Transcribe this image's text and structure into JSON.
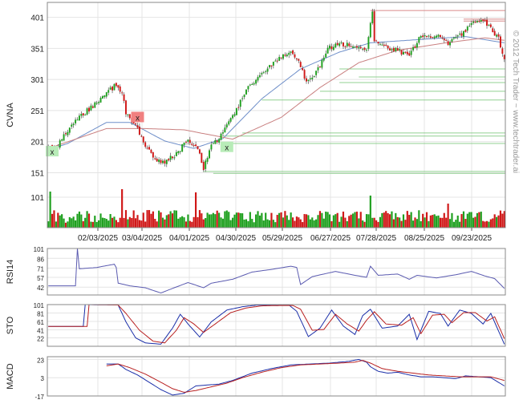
{
  "chart_data": [
    {
      "type": "candlestick",
      "panel": "price",
      "ylabel": "CVNA",
      "yticks": [
        151,
        201,
        251,
        301,
        351,
        401
      ],
      "volume_tick": 101,
      "ylim": [
        140,
        425
      ],
      "xticks": [
        "02/03/2025",
        "03/04/2025",
        "04/01/2025",
        "04/30/2025",
        "05/29/2025",
        "06/27/2025",
        "07/28/2025",
        "08/25/2025",
        "09/23/2025"
      ],
      "close_anchors": [
        [
          0,
          190
        ],
        [
          5,
          195
        ],
        [
          12,
          228
        ],
        [
          24,
          262
        ],
        [
          34,
          290
        ],
        [
          38,
          282
        ],
        [
          40,
          245
        ],
        [
          44,
          232
        ],
        [
          48,
          208
        ],
        [
          52,
          185
        ],
        [
          56,
          172
        ],
        [
          60,
          168
        ],
        [
          66,
          182
        ],
        [
          72,
          205
        ],
        [
          77,
          190
        ],
        [
          80,
          158
        ],
        [
          84,
          195
        ],
        [
          88,
          205
        ],
        [
          95,
          240
        ],
        [
          102,
          285
        ],
        [
          108,
          303
        ],
        [
          114,
          322
        ],
        [
          120,
          338
        ],
        [
          125,
          342
        ],
        [
          128,
          335
        ],
        [
          133,
          298
        ],
        [
          138,
          312
        ],
        [
          144,
          350
        ],
        [
          150,
          360
        ],
        [
          158,
          352
        ],
        [
          164,
          348
        ],
        [
          167,
          410
        ],
        [
          168,
          362
        ],
        [
          174,
          352
        ],
        [
          180,
          348
        ],
        [
          186,
          338
        ],
        [
          192,
          372
        ],
        [
          200,
          372
        ],
        [
          206,
          358
        ],
        [
          212,
          372
        ],
        [
          218,
          390
        ],
        [
          224,
          395
        ],
        [
          228,
          382
        ],
        [
          232,
          368
        ],
        [
          235,
          332
        ]
      ],
      "ma_fast_anchors": [
        [
          0,
          188
        ],
        [
          10,
          198
        ],
        [
          30,
          232
        ],
        [
          42,
          232
        ],
        [
          60,
          202
        ],
        [
          75,
          190
        ],
        [
          90,
          206
        ],
        [
          110,
          270
        ],
        [
          130,
          318
        ],
        [
          150,
          345
        ],
        [
          166,
          360
        ],
        [
          190,
          365
        ],
        [
          215,
          370
        ],
        [
          235,
          360
        ]
      ],
      "ma_slow_anchors": [
        [
          0,
          190
        ],
        [
          30,
          222
        ],
        [
          50,
          222
        ],
        [
          70,
          220
        ],
        [
          95,
          205
        ],
        [
          120,
          240
        ],
        [
          140,
          288
        ],
        [
          160,
          328
        ],
        [
          180,
          348
        ],
        [
          205,
          360
        ],
        [
          225,
          368
        ],
        [
          235,
          364
        ]
      ],
      "support_lines": [
        {
          "start": 166,
          "level": 412,
          "color": "#d98a8a"
        },
        {
          "start": 214,
          "level": 398,
          "color": "#d98a8a"
        },
        {
          "start": 214,
          "level": 395,
          "color": "#d98a8a"
        },
        {
          "start": 150,
          "level": 318,
          "color": "#90d090"
        },
        {
          "start": 160,
          "level": 305,
          "color": "#90d090"
        },
        {
          "start": 150,
          "level": 296,
          "color": "#90d090"
        },
        {
          "start": 140,
          "level": 282,
          "color": "#90d090"
        },
        {
          "start": 110,
          "level": 268,
          "color": "#90d090"
        },
        {
          "start": 90,
          "level": 210,
          "color": "#90d090"
        },
        {
          "start": 100,
          "level": 215,
          "color": "#90d090"
        },
        {
          "start": 90,
          "level": 198,
          "color": "#90d090"
        },
        {
          "start": 80,
          "level": 153,
          "color": "#90d090"
        },
        {
          "start": 85,
          "level": 150,
          "color": "#90d090"
        }
      ],
      "markers": [
        {
          "bar": 2,
          "level": 185,
          "label": "x",
          "color": "#b8ecb8"
        },
        {
          "bar": 46,
          "level": 240,
          "label": "x",
          "color": "#f08080"
        },
        {
          "bar": 92,
          "level": 192,
          "label": "x",
          "color": "#b8ecb8"
        }
      ],
      "watermark": "© 2012 Tech Trader ~ www.techtrader.ai"
    },
    {
      "type": "line",
      "panel": "rsi",
      "ylabel": "RSI14",
      "yticks": [
        101,
        86,
        71,
        57,
        42
      ],
      "ylim": [
        30,
        101
      ],
      "anchors": [
        [
          0,
          44
        ],
        [
          14,
          44
        ],
        [
          15,
          101
        ],
        [
          16,
          70
        ],
        [
          25,
          72
        ],
        [
          34,
          77
        ],
        [
          35,
          72
        ],
        [
          36,
          48
        ],
        [
          42,
          44
        ],
        [
          50,
          41
        ],
        [
          58,
          33
        ],
        [
          64,
          40
        ],
        [
          72,
          49
        ],
        [
          80,
          41
        ],
        [
          84,
          48
        ],
        [
          95,
          54
        ],
        [
          105,
          65
        ],
        [
          115,
          69
        ],
        [
          125,
          74
        ],
        [
          128,
          72
        ],
        [
          130,
          46
        ],
        [
          136,
          58
        ],
        [
          148,
          66
        ],
        [
          158,
          60
        ],
        [
          164,
          57
        ],
        [
          166,
          74
        ],
        [
          170,
          60
        ],
        [
          180,
          62
        ],
        [
          186,
          54
        ],
        [
          190,
          60
        ],
        [
          200,
          56
        ],
        [
          210,
          61
        ],
        [
          218,
          66
        ],
        [
          225,
          59
        ],
        [
          230,
          55
        ],
        [
          235,
          40
        ]
      ]
    },
    {
      "type": "line",
      "panel": "stochastic",
      "ylabel": "STO",
      "yticks": [
        101,
        81,
        61,
        41,
        22
      ],
      "ylim": [
        2,
        101
      ],
      "k_anchors": [
        [
          0,
          49
        ],
        [
          18,
          49
        ],
        [
          19,
          101
        ],
        [
          36,
          100
        ],
        [
          40,
          60
        ],
        [
          45,
          22
        ],
        [
          50,
          10
        ],
        [
          58,
          7
        ],
        [
          64,
          45
        ],
        [
          68,
          78
        ],
        [
          72,
          55
        ],
        [
          78,
          24
        ],
        [
          84,
          60
        ],
        [
          92,
          88
        ],
        [
          100,
          96
        ],
        [
          108,
          100
        ],
        [
          118,
          99
        ],
        [
          124,
          100
        ],
        [
          128,
          85
        ],
        [
          134,
          25
        ],
        [
          140,
          45
        ],
        [
          146,
          88
        ],
        [
          152,
          50
        ],
        [
          158,
          30
        ],
        [
          162,
          75
        ],
        [
          166,
          90
        ],
        [
          172,
          45
        ],
        [
          180,
          50
        ],
        [
          186,
          78
        ],
        [
          190,
          18
        ],
        [
          196,
          85
        ],
        [
          202,
          80
        ],
        [
          206,
          50
        ],
        [
          212,
          88
        ],
        [
          218,
          80
        ],
        [
          224,
          55
        ],
        [
          228,
          80
        ],
        [
          235,
          7
        ]
      ],
      "d_anchors": [
        [
          0,
          49
        ],
        [
          20,
          49
        ],
        [
          21,
          101
        ],
        [
          36,
          100
        ],
        [
          40,
          80
        ],
        [
          47,
          40
        ],
        [
          54,
          14
        ],
        [
          60,
          10
        ],
        [
          66,
          40
        ],
        [
          70,
          70
        ],
        [
          75,
          55
        ],
        [
          80,
          35
        ],
        [
          86,
          55
        ],
        [
          94,
          82
        ],
        [
          102,
          93
        ],
        [
          110,
          98
        ],
        [
          120,
          99
        ],
        [
          126,
          99
        ],
        [
          130,
          90
        ],
        [
          136,
          40
        ],
        [
          142,
          42
        ],
        [
          148,
          78
        ],
        [
          154,
          55
        ],
        [
          160,
          38
        ],
        [
          164,
          64
        ],
        [
          168,
          84
        ],
        [
          174,
          55
        ],
        [
          182,
          52
        ],
        [
          188,
          70
        ],
        [
          192,
          32
        ],
        [
          198,
          76
        ],
        [
          204,
          78
        ],
        [
          208,
          58
        ],
        [
          214,
          82
        ],
        [
          220,
          82
        ],
        [
          226,
          62
        ],
        [
          230,
          72
        ],
        [
          235,
          20
        ]
      ]
    },
    {
      "type": "line",
      "panel": "macd",
      "ylabel": "MACD",
      "yticks": [
        23,
        3,
        -17
      ],
      "ylim": [
        -17,
        26
      ],
      "macd_anchors": [
        [
          30,
          18
        ],
        [
          36,
          18
        ],
        [
          40,
          12
        ],
        [
          46,
          6
        ],
        [
          52,
          -2
        ],
        [
          58,
          -10
        ],
        [
          64,
          -16
        ],
        [
          70,
          -14
        ],
        [
          76,
          -6
        ],
        [
          82,
          -5
        ],
        [
          88,
          -4
        ],
        [
          95,
          0
        ],
        [
          105,
          8
        ],
        [
          115,
          13
        ],
        [
          125,
          17
        ],
        [
          135,
          18
        ],
        [
          145,
          19
        ],
        [
          155,
          21
        ],
        [
          160,
          23
        ],
        [
          164,
          20
        ],
        [
          166,
          15
        ],
        [
          170,
          10
        ],
        [
          175,
          8
        ],
        [
          180,
          9
        ],
        [
          186,
          6
        ],
        [
          192,
          4
        ],
        [
          198,
          4
        ],
        [
          204,
          3
        ],
        [
          210,
          2
        ],
        [
          215,
          5
        ],
        [
          222,
          4
        ],
        [
          228,
          3
        ],
        [
          235,
          -6
        ]
      ],
      "signal_anchors": [
        [
          30,
          16
        ],
        [
          36,
          18
        ],
        [
          42,
          14
        ],
        [
          50,
          7
        ],
        [
          58,
          -2
        ],
        [
          64,
          -9
        ],
        [
          70,
          -13
        ],
        [
          76,
          -11
        ],
        [
          84,
          -7
        ],
        [
          92,
          -3
        ],
        [
          100,
          3
        ],
        [
          110,
          9
        ],
        [
          120,
          14
        ],
        [
          130,
          17
        ],
        [
          140,
          18
        ],
        [
          150,
          19
        ],
        [
          158,
          20
        ],
        [
          162,
          22
        ],
        [
          166,
          19
        ],
        [
          172,
          13
        ],
        [
          180,
          10
        ],
        [
          188,
          8
        ],
        [
          196,
          6
        ],
        [
          204,
          5
        ],
        [
          212,
          4
        ],
        [
          220,
          4
        ],
        [
          228,
          4
        ],
        [
          235,
          0
        ]
      ]
    }
  ]
}
